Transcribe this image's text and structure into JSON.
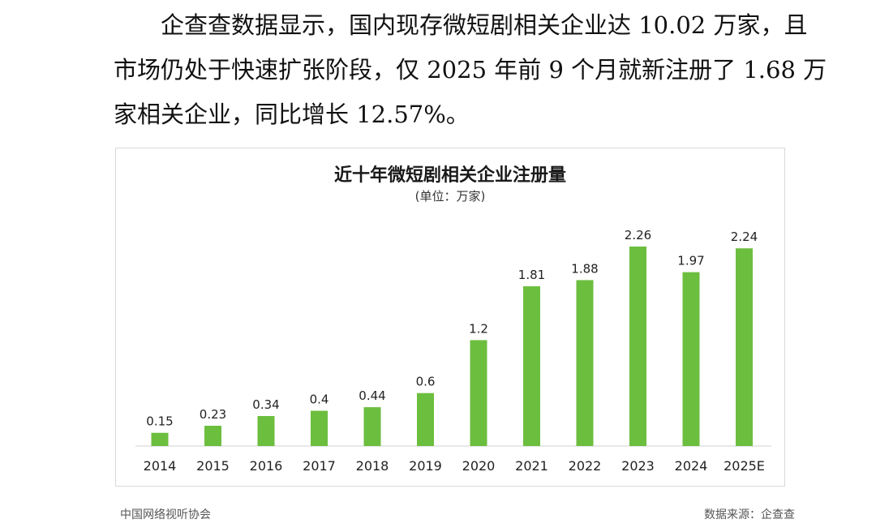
{
  "paragraph": {
    "lines": [
      "企查查数据显示，国内现存微短剧相关企业达 10.02 万家，且",
      "市场仍处于快速扩张阶段，仅 2025 年前 9 个月就新注册了 1.68 万",
      "家相关企业，同比增长 12.57%。"
    ]
  },
  "footer": {
    "left": "中国网络视听协会",
    "right": "数据来源：企查查"
  },
  "chart_data": {
    "type": "bar",
    "title": "近十年微短剧相关企业注册量",
    "subtitle": "(单位：万家)",
    "categories": [
      "2014",
      "2015",
      "2016",
      "2017",
      "2018",
      "2019",
      "2020",
      "2021",
      "2022",
      "2023",
      "2024",
      "2025E"
    ],
    "values": [
      0.15,
      0.23,
      0.34,
      0.4,
      0.44,
      0.6,
      1.2,
      1.81,
      1.88,
      2.26,
      1.97,
      2.24
    ],
    "value_labels": [
      "0.15",
      "0.23",
      "0.34",
      "0.4",
      "0.44",
      "0.6",
      "1.2",
      "1.81",
      "1.88",
      "2.26",
      "1.97",
      "2.24"
    ],
    "xlabel": "",
    "ylabel": "",
    "ylim": [
      0,
      2.26
    ],
    "grid": false,
    "bar_color": "#6cbe3f"
  }
}
